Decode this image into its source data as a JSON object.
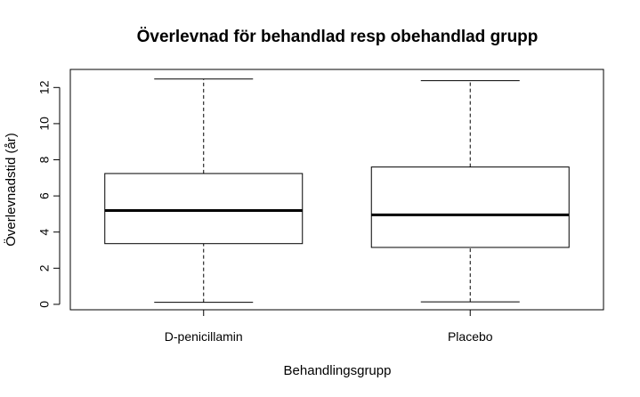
{
  "chart_data": {
    "type": "boxplot",
    "title": "Överlevnad för behandlad resp obehandlad grupp",
    "xlabel": "Behandlingsgrupp",
    "ylabel": "Överlevnadstid (år)",
    "ylim": [
      -0.3,
      13
    ],
    "yticks": [
      0,
      2,
      4,
      6,
      8,
      10,
      12
    ],
    "categories": [
      "D-penicillamin",
      "Placebo"
    ],
    "boxes": [
      {
        "name": "D-penicillamin",
        "min": 0.11,
        "q1": 3.36,
        "median": 5.19,
        "q3": 7.24,
        "max": 12.47
      },
      {
        "name": "Placebo",
        "min": 0.14,
        "q1": 3.15,
        "median": 4.95,
        "q3": 7.6,
        "max": 12.38
      }
    ],
    "grid": false,
    "legend": "none"
  }
}
